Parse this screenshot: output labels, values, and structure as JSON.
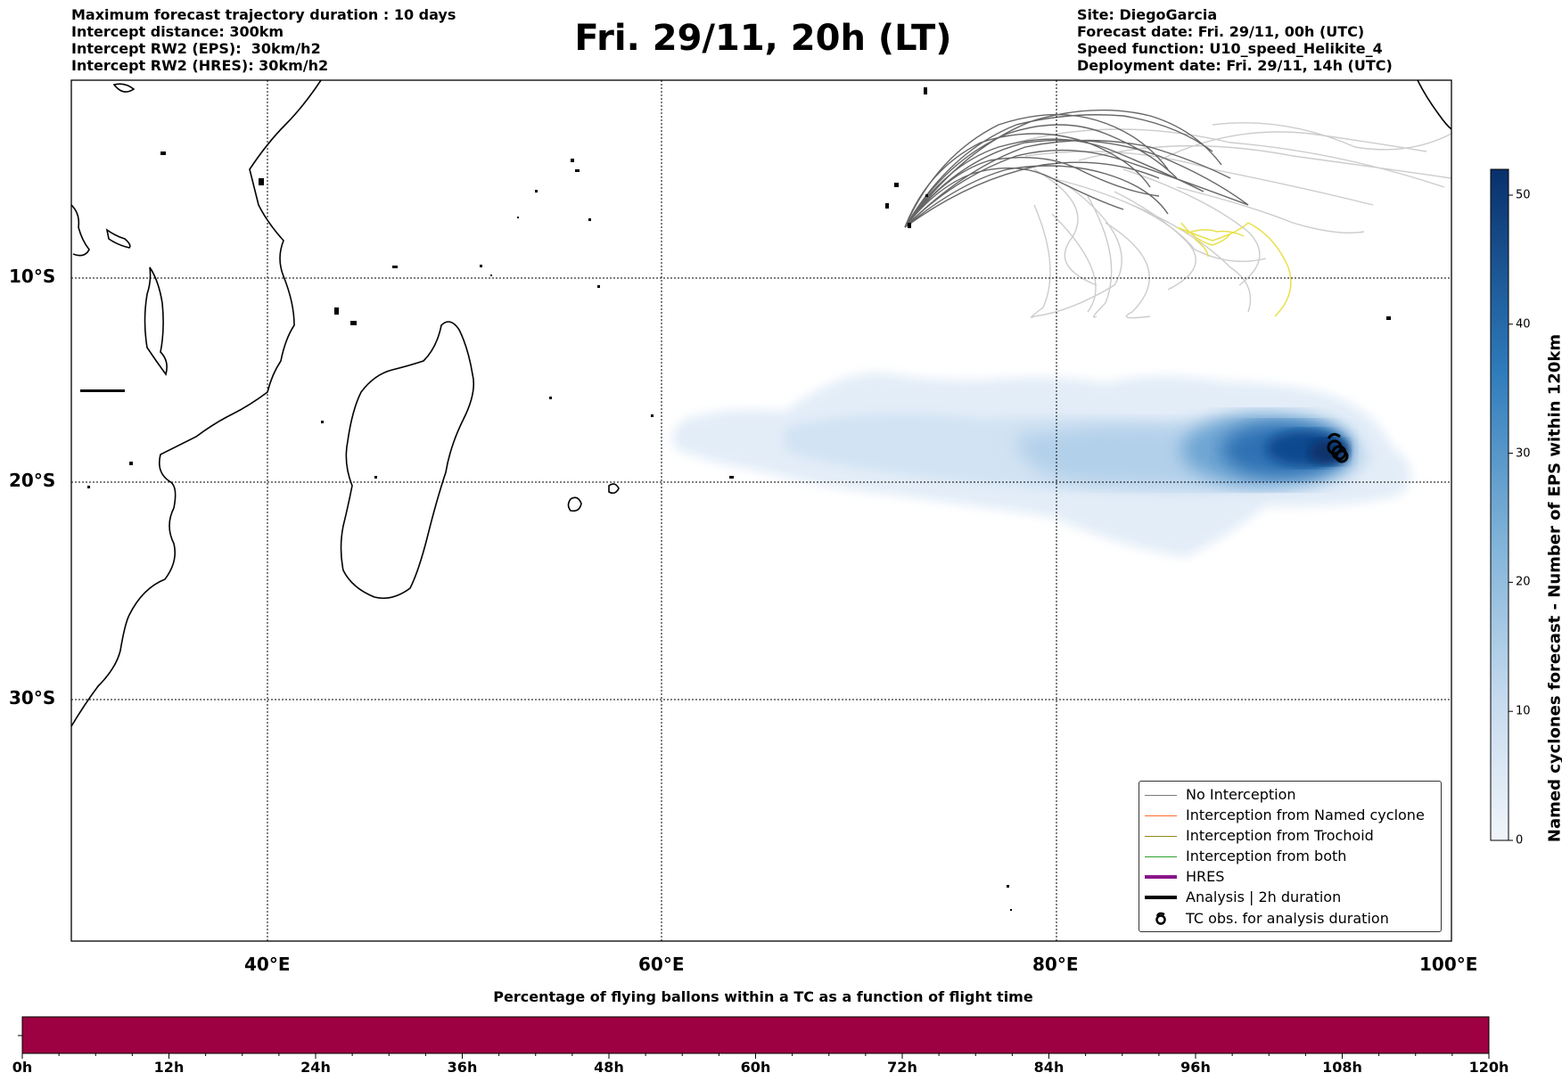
{
  "header": {
    "left_lines": [
      "Maximum forecast trajectory duration : 10 days",
      "Intercept distance: 300km",
      "Intercept RW2 (EPS):  30km/h2",
      "Intercept RW2 (HRES): 30km/h2"
    ],
    "title": "Fri. 29/11, 20h (LT)",
    "right_lines": [
      "Site: DiegoGarcia",
      "Forecast date: Fri. 29/11, 00h (UTC)",
      "Speed function: U10_speed_Helikite_4",
      "Deployment date: Fri. 29/11, 14h (UTC)"
    ]
  },
  "map": {
    "lon_labels": [
      "40°E",
      "60°E",
      "80°E",
      "100°E"
    ],
    "lat_labels": [
      "10°S",
      "20°S",
      "30°S"
    ],
    "extent": {
      "lon": [
        30,
        100
      ],
      "lat": [
        -42,
        0
      ]
    }
  },
  "legend": {
    "items": [
      {
        "label": "No Interception",
        "color": "#7a7a7a",
        "kind": "thin"
      },
      {
        "label": "Interception from Named cyclone",
        "color": "#ff6a2a",
        "kind": "thin"
      },
      {
        "label": "Interception from Trochoid",
        "color": "#8c8a1c",
        "kind": "thin"
      },
      {
        "label": "Interception from both",
        "color": "#2ca02c",
        "kind": "thin"
      },
      {
        "label": "HRES",
        "color": "#8a158a",
        "kind": "thick"
      },
      {
        "label": "Analysis | 2h duration",
        "color": "#000000",
        "kind": "thick"
      },
      {
        "label": "TC obs. for analysis duration",
        "color": "#000000",
        "kind": "marker",
        "icon": "cyclone-icon"
      }
    ]
  },
  "colorbar": {
    "label": "Named cyclones forecast - Number of EPS within 120km",
    "ticks": [
      0,
      10,
      20,
      30,
      40,
      50
    ],
    "max": 52,
    "color_low": "#e8f1fa",
    "color_high": "#08306b"
  },
  "timebar": {
    "title": "Percentage of flying ballons within a TC as a function of flight time",
    "tick_labels": [
      "0h",
      "12h",
      "24h",
      "36h",
      "48h",
      "60h",
      "72h",
      "84h",
      "96h",
      "108h",
      "120h"
    ],
    "color": "#9e0142"
  }
}
